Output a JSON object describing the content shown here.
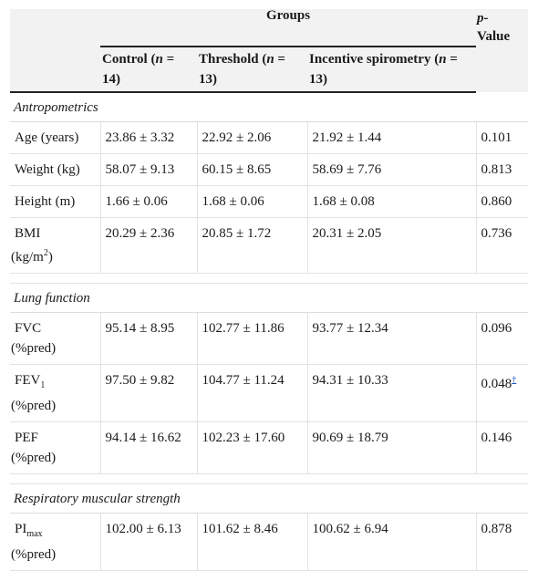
{
  "header": {
    "groups": "Groups",
    "p_value": "p-Value",
    "p_prefix": "p-",
    "p_suffix": "Value",
    "col_control": "Control (n = 14)",
    "col_threshold": "Threshold (n = 13)",
    "col_incentive": "Incentive spirometry (n = 13)"
  },
  "sections": {
    "antropometrics": "Antropometrics",
    "lung_function": "Lung function",
    "respiratory": "Respiratory muscular strength"
  },
  "rows": {
    "age": {
      "label": "Age (years)",
      "control": "23.86 ± 3.32",
      "threshold": "22.92 ± 2.06",
      "incentive": "21.92 ± 1.44",
      "p": "0.101"
    },
    "weight": {
      "label": "Weight (kg)",
      "control": "58.07 ± 9.13",
      "threshold": "60.15 ± 8.65",
      "incentive": "58.69 ± 7.76",
      "p": "0.813"
    },
    "height": {
      "label": "Height (m)",
      "control": "1.66 ± 0.06",
      "threshold": "1.68 ± 0.06",
      "incentive": "1.68 ± 0.08",
      "p": "0.860"
    },
    "bmi": {
      "label_a": "BMI",
      "label_b": "(kg/m",
      "label_sup": "2",
      "label_c": ")",
      "control": "20.29 ± 2.36",
      "threshold": "20.85 ± 1.72",
      "incentive": "20.31 ± 2.05",
      "p": "0.736"
    },
    "fvc": {
      "label_a": "FVC",
      "label_b": "(%pred)",
      "control": "95.14 ± 8.95",
      "threshold": "102.77 ± 11.86",
      "incentive": "93.77 ± 12.34",
      "p": "0.096"
    },
    "fev1": {
      "label_a": "FEV",
      "label_sub": "1",
      "label_b": "(%pred)",
      "control": "97.50 ± 9.82",
      "threshold": "104.77 ± 11.24",
      "incentive": "94.31 ± 10.33",
      "p": "0.048",
      "footnote": "†"
    },
    "pef": {
      "label_a": "PEF",
      "label_b": "(%pred)",
      "control": "94.14 ± 16.62",
      "threshold": "102.23 ± 17.60",
      "incentive": "90.69 ± 18.79",
      "p": "0.146"
    },
    "pimax": {
      "label_a": "PI",
      "label_sub": "max",
      "label_b": "(%pred)",
      "control": "102.00 ± 6.13",
      "threshold": "101.62 ± 8.46",
      "incentive": "100.62 ± 6.94",
      "p": "0.878"
    }
  }
}
